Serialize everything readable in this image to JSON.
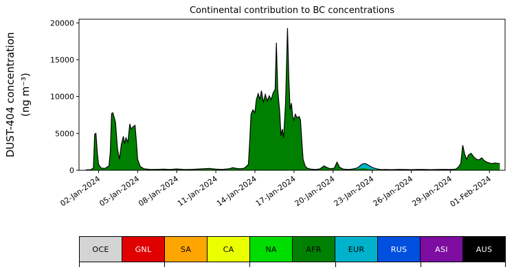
{
  "chart_data": {
    "type": "area",
    "stacked": true,
    "grid": false,
    "title": "Continental contribution to BC concentrations",
    "ylabel": "DUST-404 concentration (ng m⁻³)",
    "ylabel_line1": "DUST-404 concentration",
    "ylabel_line2": "(ng m⁻³)",
    "xlim": [
      0.5,
      33.2
    ],
    "ylim": [
      0,
      20500
    ],
    "yticks": [
      0,
      5000,
      10000,
      15000,
      20000
    ],
    "xticks": [
      {
        "pos": 2,
        "label": "02-Jan-2024"
      },
      {
        "pos": 5,
        "label": "05-Jan-2024"
      },
      {
        "pos": 8,
        "label": "08-Jan-2024"
      },
      {
        "pos": 11,
        "label": "11-Jan-2024"
      },
      {
        "pos": 14,
        "label": "14-Jan-2024"
      },
      {
        "pos": 17,
        "label": "17-Jan-2024"
      },
      {
        "pos": 20,
        "label": "20-Jan-2024"
      },
      {
        "pos": 23,
        "label": "23-Jan-2024"
      },
      {
        "pos": 26,
        "label": "26-Jan-2024"
      },
      {
        "pos": 29,
        "label": "29-Jan-2024"
      },
      {
        "pos": 32,
        "label": "01-Feb-2024"
      }
    ],
    "x": [
      1.0,
      1.4,
      1.6,
      1.7,
      1.8,
      1.9,
      2.0,
      2.2,
      2.5,
      2.8,
      2.9,
      3.0,
      3.1,
      3.3,
      3.45,
      3.6,
      3.75,
      3.9,
      4.0,
      4.1,
      4.25,
      4.4,
      4.5,
      4.65,
      4.8,
      4.9,
      5.0,
      5.2,
      5.5,
      6.0,
      6.5,
      7.0,
      7.5,
      8.0,
      8.5,
      9.0,
      9.5,
      10.0,
      10.5,
      11.0,
      11.5,
      12.0,
      12.3,
      12.6,
      12.9,
      13.2,
      13.5,
      13.6,
      13.7,
      13.85,
      14.0,
      14.1,
      14.25,
      14.4,
      14.5,
      14.65,
      14.8,
      14.95,
      15.1,
      15.25,
      15.4,
      15.55,
      15.65,
      15.75,
      15.9,
      16.0,
      16.1,
      16.2,
      16.35,
      16.5,
      16.6,
      16.7,
      16.8,
      16.9,
      17.0,
      17.1,
      17.25,
      17.4,
      17.5,
      17.6,
      17.7,
      17.85,
      18.0,
      18.3,
      18.7,
      19.0,
      19.3,
      19.5,
      19.8,
      20.1,
      20.3,
      20.5,
      20.8,
      21.2,
      21.6,
      21.9,
      22.1,
      22.3,
      22.5,
      22.7,
      22.9,
      23.1,
      23.4,
      23.7,
      24.0,
      24.5,
      25.0,
      25.5,
      26.0,
      26.5,
      27.0,
      27.5,
      28.0,
      28.5,
      29.0,
      29.4,
      29.6,
      29.8,
      29.95,
      30.1,
      30.25,
      30.4,
      30.6,
      30.8,
      31.0,
      31.2,
      31.4,
      31.6,
      31.8,
      32.0,
      32.2,
      32.4,
      32.6,
      32.8
    ],
    "series": [
      {
        "name": "AFR",
        "color": "#008000",
        "values": [
          50,
          80,
          300,
          4900,
          5000,
          2500,
          800,
          300,
          250,
          600,
          2500,
          7700,
          7800,
          6500,
          3000,
          1500,
          3500,
          4600,
          3600,
          4400,
          3800,
          6300,
          5600,
          5900,
          6100,
          4000,
          1500,
          500,
          200,
          100,
          120,
          150,
          100,
          180,
          120,
          100,
          150,
          200,
          250,
          150,
          120,
          200,
          350,
          250,
          200,
          300,
          800,
          4000,
          7600,
          8200,
          7800,
          9500,
          10400,
          9600,
          10800,
          9200,
          10300,
          9400,
          10100,
          9600,
          10500,
          11000,
          17300,
          11000,
          8000,
          4700,
          5600,
          4400,
          9000,
          19300,
          12500,
          8200,
          9100,
          7300,
          6800,
          7600,
          7100,
          7300,
          6800,
          4000,
          1500,
          600,
          300,
          150,
          100,
          200,
          600,
          400,
          200,
          300,
          1100,
          400,
          150,
          100,
          150,
          200,
          250,
          300,
          250,
          200,
          150,
          120,
          100,
          80,
          100,
          80,
          120,
          100,
          80,
          120,
          100,
          80,
          100,
          120,
          100,
          150,
          400,
          900,
          3400,
          2200,
          1500,
          2100,
          2300,
          1800,
          1500,
          1400,
          1700,
          1300,
          1100,
          1000,
          900,
          1000,
          950,
          900
        ]
      },
      {
        "name": "EUR",
        "color": "#00b2cc",
        "values": [
          0,
          0,
          0,
          0,
          0,
          0,
          0,
          0,
          0,
          0,
          0,
          0,
          0,
          0,
          0,
          0,
          0,
          0,
          0,
          0,
          0,
          0,
          0,
          0,
          0,
          0,
          0,
          0,
          0,
          0,
          0,
          0,
          0,
          0,
          0,
          0,
          0,
          0,
          0,
          0,
          0,
          0,
          0,
          0,
          0,
          0,
          0,
          0,
          0,
          0,
          0,
          0,
          0,
          0,
          0,
          0,
          0,
          0,
          0,
          0,
          0,
          0,
          0,
          0,
          0,
          0,
          0,
          0,
          0,
          0,
          0,
          0,
          0,
          0,
          0,
          0,
          0,
          0,
          0,
          0,
          0,
          0,
          0,
          0,
          0,
          0,
          0,
          0,
          0,
          0,
          0,
          0,
          0,
          0,
          50,
          150,
          400,
          600,
          650,
          500,
          350,
          200,
          80,
          0,
          0,
          0,
          0,
          0,
          0,
          0,
          0,
          0,
          0,
          0,
          0,
          0,
          0,
          0,
          0,
          0,
          0,
          0,
          0,
          0,
          0,
          0,
          0,
          0,
          0,
          0,
          0,
          0,
          0,
          0
        ]
      }
    ],
    "legend": {
      "position": "bottom",
      "items": [
        {
          "label": "OCE",
          "color": "#d4d4d4",
          "text_color": "#000000"
        },
        {
          "label": "GNL",
          "color": "#e00000",
          "text_color": "#ffffff"
        },
        {
          "label": "SA",
          "color": "#ffa500",
          "text_color": "#000000"
        },
        {
          "label": "CA",
          "color": "#eaff00",
          "text_color": "#000000"
        },
        {
          "label": "NA",
          "color": "#00dd00",
          "text_color": "#000000"
        },
        {
          "label": "AFR",
          "color": "#008000",
          "text_color": "#000000"
        },
        {
          "label": "EUR",
          "color": "#00b2cc",
          "text_color": "#000000"
        },
        {
          "label": "RUS",
          "color": "#0050e0",
          "text_color": "#ffffff"
        },
        {
          "label": "ASI",
          "color": "#7d0ca0",
          "text_color": "#ffffff"
        },
        {
          "label": "AUS",
          "color": "#000000",
          "text_color": "#ffffff"
        }
      ]
    }
  }
}
